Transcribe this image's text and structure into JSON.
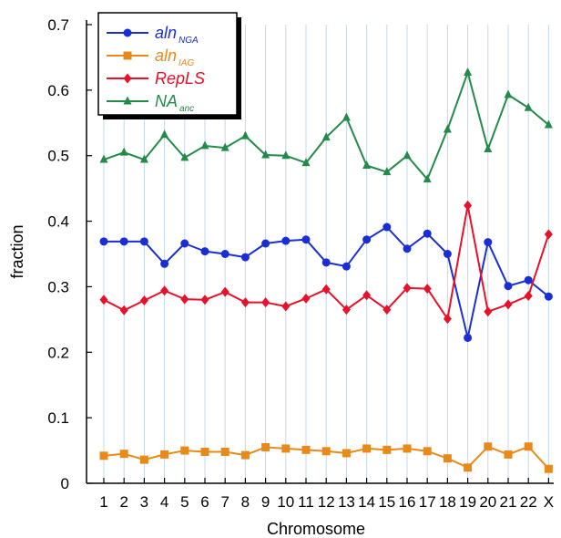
{
  "chart_data": {
    "type": "line",
    "title": "",
    "xlabel": "Chromosome",
    "ylabel": "fraction",
    "ylim": [
      0,
      0.7
    ],
    "yticks": [
      "0",
      "0.1",
      "0.2",
      "0.3",
      "0.4",
      "0.5",
      "0.6",
      "0.7"
    ],
    "grid": "vertical",
    "legend_position": "top-left",
    "categories": [
      "1",
      "2",
      "3",
      "4",
      "5",
      "6",
      "7",
      "8",
      "9",
      "10",
      "11",
      "12",
      "13",
      "14",
      "15",
      "16",
      "17",
      "18",
      "19",
      "20",
      "21",
      "22",
      "X"
    ],
    "series": [
      {
        "name": "aln",
        "subscript": "NGA",
        "color": "#1a2ed6",
        "marker": "circle",
        "values": [
          0.369,
          0.369,
          0.369,
          0.335,
          0.366,
          0.354,
          0.35,
          0.345,
          0.366,
          0.37,
          0.372,
          0.337,
          0.331,
          0.372,
          0.391,
          0.358,
          0.381,
          0.35,
          0.222,
          0.368,
          0.301,
          0.31,
          0.285
        ]
      },
      {
        "name": "aln",
        "subscript": "IAG",
        "color": "#e88a1a",
        "marker": "square",
        "values": [
          0.042,
          0.045,
          0.036,
          0.044,
          0.05,
          0.048,
          0.048,
          0.043,
          0.055,
          0.053,
          0.051,
          0.049,
          0.046,
          0.053,
          0.051,
          0.053,
          0.049,
          0.038,
          0.024,
          0.056,
          0.044,
          0.056,
          0.022
        ]
      },
      {
        "name": "RepLS",
        "subscript": "",
        "color": "#e8102a",
        "marker": "diamond",
        "values": [
          0.28,
          0.264,
          0.279,
          0.294,
          0.281,
          0.28,
          0.292,
          0.276,
          0.276,
          0.27,
          0.282,
          0.296,
          0.265,
          0.287,
          0.265,
          0.298,
          0.297,
          0.251,
          0.424,
          0.262,
          0.273,
          0.286,
          0.38
        ]
      },
      {
        "name": "NA",
        "subscript": "anc",
        "color": "#228a4a",
        "marker": "triangle",
        "values": [
          0.494,
          0.505,
          0.494,
          0.532,
          0.497,
          0.515,
          0.512,
          0.53,
          0.501,
          0.5,
          0.489,
          0.528,
          0.558,
          0.485,
          0.475,
          0.5,
          0.464,
          0.54,
          0.627,
          0.51,
          0.593,
          0.573,
          0.547
        ]
      }
    ]
  }
}
